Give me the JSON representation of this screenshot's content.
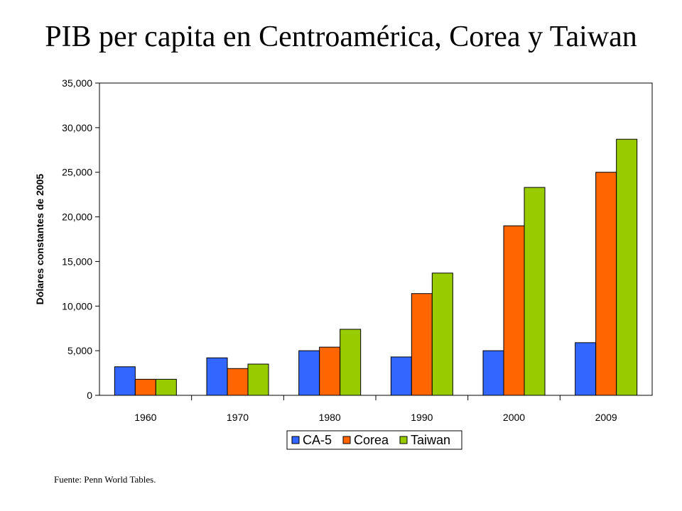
{
  "title": "PIB per capita en Centroamérica, Corea y Taiwan",
  "source": "Fuente: Penn World Tables.",
  "chart_data": {
    "type": "bar",
    "categories": [
      "1960",
      "1970",
      "1980",
      "1990",
      "2000",
      "2009"
    ],
    "series": [
      {
        "name": "CA-5",
        "color": "#3366ff",
        "values": [
          3200,
          4200,
          5000,
          4300,
          5000,
          5900
        ]
      },
      {
        "name": "Corea",
        "color": "#ff6600",
        "values": [
          1800,
          3000,
          5400,
          11400,
          19000,
          25000
        ]
      },
      {
        "name": "Taiwan",
        "color": "#99cc00",
        "values": [
          1800,
          3500,
          7400,
          13700,
          23300,
          28700
        ]
      }
    ],
    "xlabel": "",
    "ylabel": "Dólares constantes de 2005",
    "ylim": [
      0,
      35000
    ],
    "yticks": [
      "0",
      "5,000",
      "10,000",
      "15,000",
      "20,000",
      "25,000",
      "30,000",
      "35,000"
    ],
    "grid": false,
    "legend": "bottom"
  }
}
